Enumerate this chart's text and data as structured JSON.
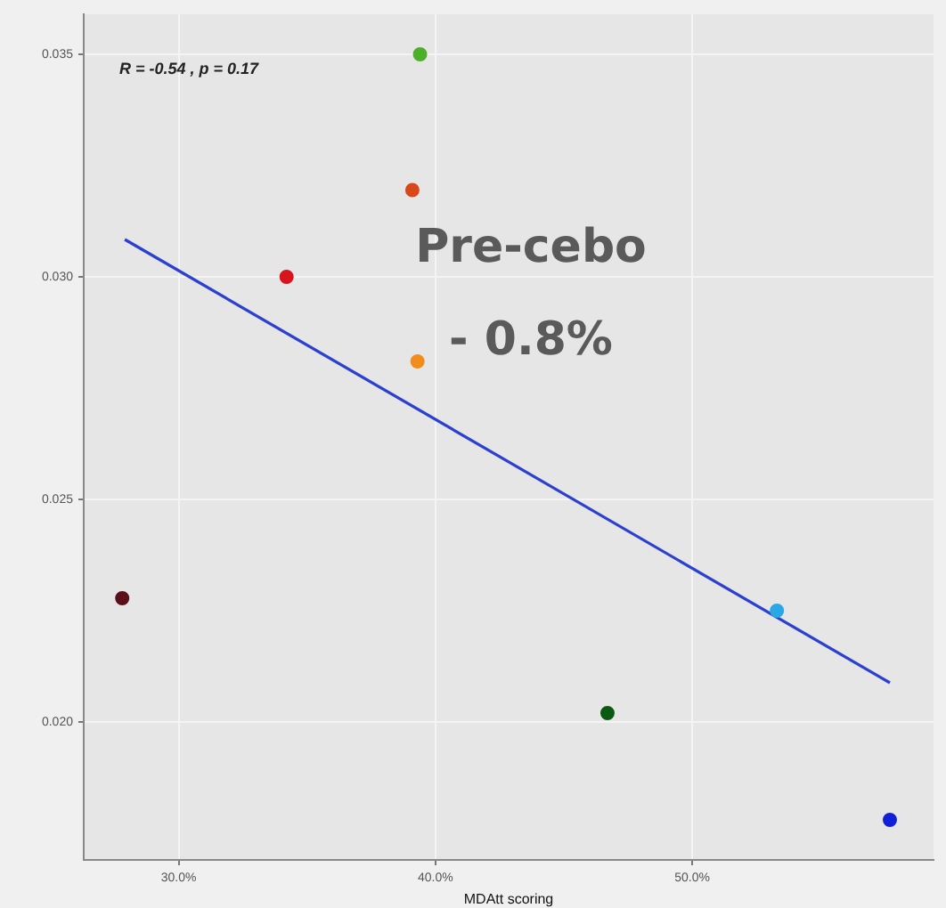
{
  "chart_data": {
    "type": "scatter",
    "xlabel": "MDAtt scoring",
    "annotations": [
      "R = -0.54 , p = 0.17",
      "Pre-cebo",
      "- 0.8%"
    ],
    "xlim": [
      26.3,
      59.4
    ],
    "ylim": [
      0.0169,
      0.0359
    ],
    "xticks": [
      {
        "value": 30,
        "label": "30.0%"
      },
      {
        "value": 40,
        "label": "40.0%"
      },
      {
        "value": 50,
        "label": "50.0%"
      }
    ],
    "yticks": [
      {
        "value": 0.02,
        "label": "0.020"
      },
      {
        "value": 0.025,
        "label": "0.025"
      },
      {
        "value": 0.03,
        "label": "0.030"
      },
      {
        "value": 0.035,
        "label": "0.035"
      }
    ],
    "grid": true,
    "legend": false,
    "marker": "circle",
    "series": [
      {
        "x": [
          39.4,
          39.1,
          34.2,
          39.3,
          27.8,
          46.7,
          53.3,
          57.7
        ],
        "values": [
          0.035,
          0.03195,
          0.03,
          0.0281,
          0.02278,
          0.0202,
          0.0225,
          0.0178
        ],
        "colors": [
          "#4caf2a",
          "#d9481a",
          "#d8141c",
          "#f28c1a",
          "#5a0f1a",
          "#0b5a12",
          "#2aa8e6",
          "#1020d8"
        ]
      },
      {
        "type": "line",
        "x": [
          27.9,
          57.7
        ],
        "values": [
          0.03084,
          0.02088
        ],
        "color": "#2b3fd0",
        "marker": "none"
      }
    ]
  }
}
